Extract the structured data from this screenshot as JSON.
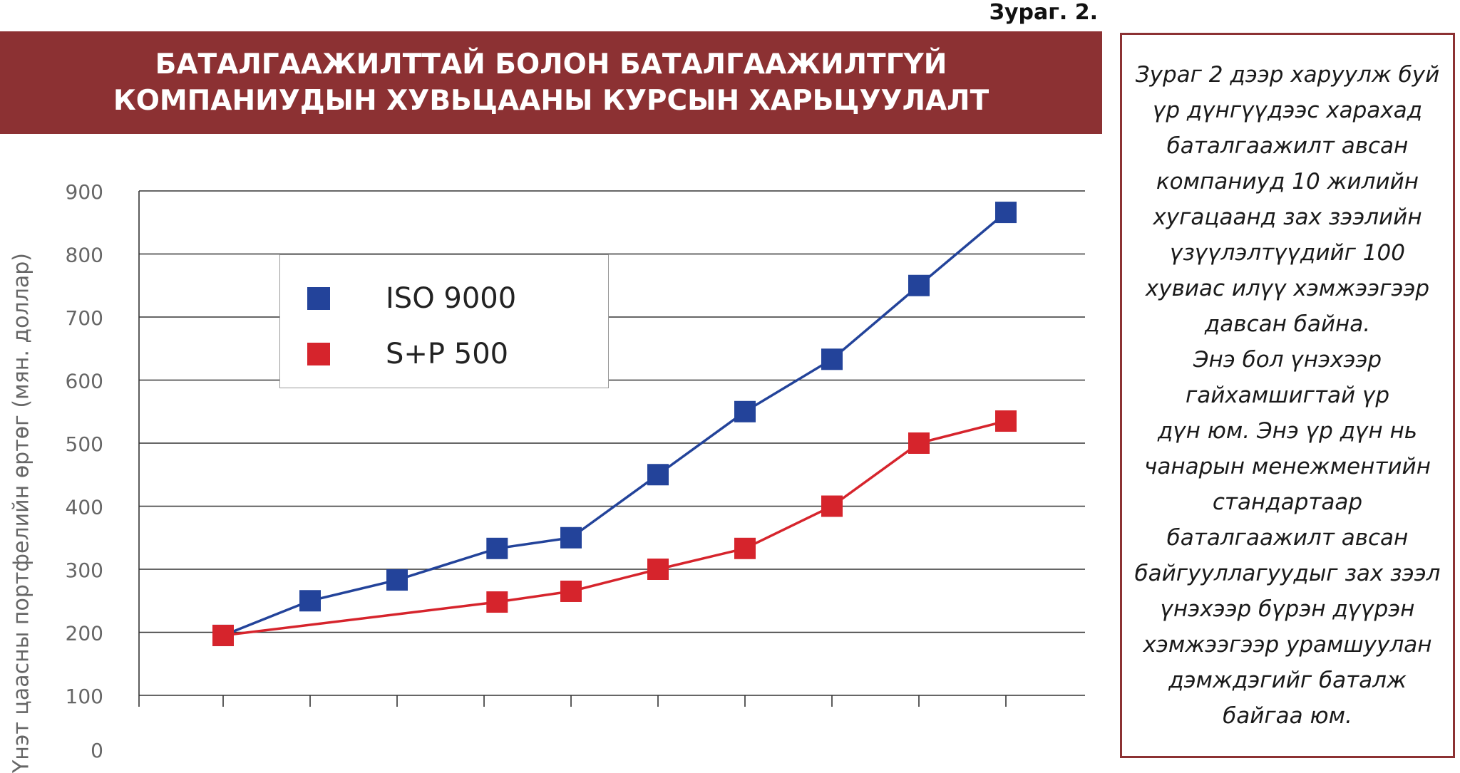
{
  "figure_label": "Зураг. 2.",
  "title_lines": [
    "БАТАЛГААЖИЛТТАЙ БОЛОН БАТАЛГААЖИЛТГҮЙ",
    "КОМПАНИУДЫН ХУВЬЦААНЫ КУРСЫН ХАРЬЦУУЛАЛТ"
  ],
  "colors": {
    "banner": "#8c3133",
    "iso": "#23439a",
    "sp": "#d6242c",
    "grid": "#333333"
  },
  "side_text": [
    "Зураг 2 дээр харуулж буй",
    "үр дүнгүүдээс харахад",
    "баталгаажилт авсан",
    "компаниуд 10 жилийн",
    "хугацаанд зах зээлийн",
    "үзүүлэлтүүдийг 100",
    "хувиас илүү хэмжээгээр",
    "давсан байна.",
    "Энэ бол үнэхээр",
    "гайхамшигтай үр",
    "дүн юм. Энэ үр дүн нь",
    "чанарын менежментийн",
    "стандартаар",
    "баталгаажилт авсан",
    "байгууллагуудыг зах зээл",
    "үнэхээр бүрэн дүүрэн",
    "хэмжээгээр урамшуулан",
    "дэмждэгийг баталж",
    "байгаа юм."
  ],
  "chart_data": {
    "type": "line",
    "title": "",
    "xlabel": "",
    "ylabel": "Үнэт цаасны портфелийн өртөг (мян. доллар)",
    "x": [
      1,
      2,
      3,
      4,
      5,
      6,
      7,
      8,
      9,
      10
    ],
    "xlim": [
      0,
      11
    ],
    "yticks": [
      "0",
      "100",
      "200",
      "300",
      "400",
      "500",
      "600",
      "700",
      "800",
      "900"
    ],
    "ylim": [
      100,
      900
    ],
    "grid": true,
    "legend_position": "top-left",
    "series": [
      {
        "name": "ISO 9000",
        "color": "#23439a",
        "x": [
          1,
          2,
          3,
          4.15,
          5,
          6,
          7,
          8,
          9,
          10
        ],
        "values": [
          195,
          250,
          283,
          333,
          350,
          450,
          550,
          633,
          750,
          866
        ]
      },
      {
        "name": "S+P 500",
        "color": "#d6242c",
        "x": [
          1,
          4.15,
          5,
          6,
          7,
          8,
          9,
          10
        ],
        "values": [
          195,
          248,
          265,
          300,
          333,
          400,
          500,
          535
        ]
      }
    ]
  }
}
